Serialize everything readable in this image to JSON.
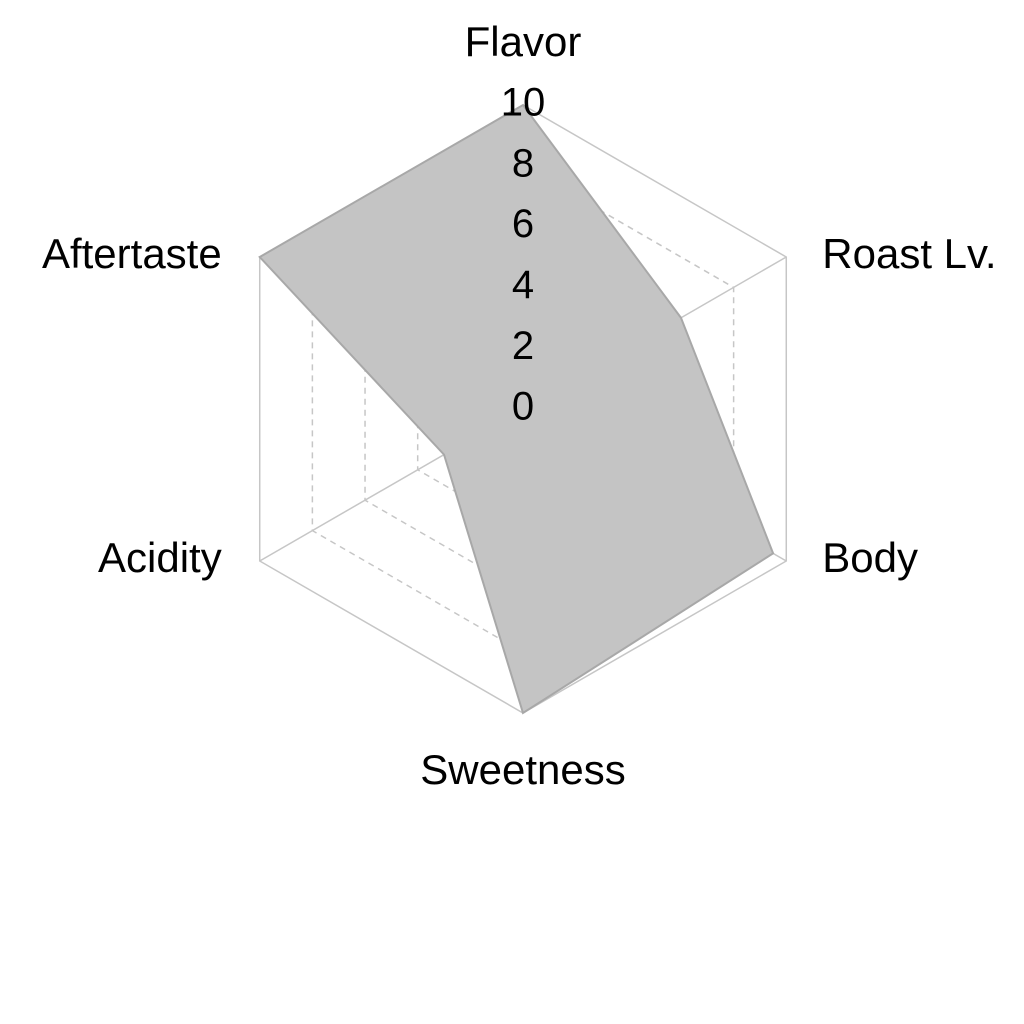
{
  "chart_data": {
    "type": "radar",
    "axes": [
      "Flavor",
      "Roast Lv.",
      "Body",
      "Sweetness",
      "Acidity",
      "Aftertaste"
    ],
    "series": [
      {
        "values": [
          10,
          6,
          9.5,
          10,
          3,
          10
        ]
      }
    ],
    "range": [
      0,
      10
    ],
    "ticks": [
      "0",
      "2",
      "4",
      "6",
      "8",
      "10"
    ],
    "tick_values": [
      0,
      2,
      4,
      6,
      8,
      10
    ],
    "grid": true,
    "legend": "none"
  },
  "colors": {
    "fill": "#c4c4c4",
    "stroke": "#a8a8a8",
    "grid": "#c6c6c6"
  }
}
